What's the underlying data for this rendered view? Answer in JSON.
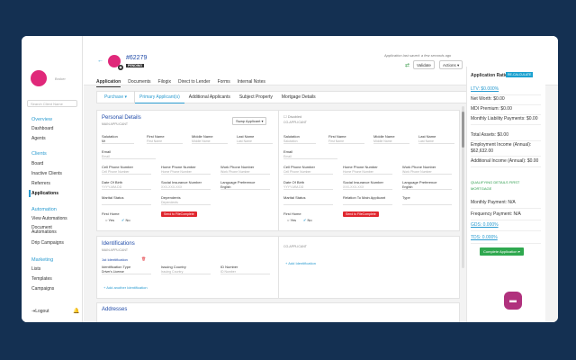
{
  "sidebar": {
    "broker": "Broker",
    "search_placeholder": "Search Client Name",
    "sections": [
      {
        "title": "Overview",
        "items": [
          "Dashboard",
          "Agents"
        ]
      },
      {
        "title": "Clients",
        "items": [
          "Board",
          "Inactive Clients",
          "Referrers",
          "Applications"
        ]
      },
      {
        "title": "Automation",
        "items": [
          "View Automations",
          "Document Automations",
          "Drip Campaigns"
        ]
      },
      {
        "title": "Marketing",
        "items": [
          "Lists",
          "Templates",
          "Campaigns"
        ]
      }
    ],
    "active_item": "Applications",
    "logout": "Logout"
  },
  "header": {
    "order_id": "#62279",
    "pending": "PENDING",
    "saved": "Application last saved: a few seconds ago",
    "validate": "Validate",
    "actions": "Actions ▾",
    "tabs": [
      "Application",
      "Documents",
      "Filogix",
      "Direct to Lender",
      "Forms",
      "Internal Notes"
    ]
  },
  "subbar": {
    "purpose": "Purchase ▾",
    "tabs": [
      "Primary Applicant(s)",
      "Additional Applicants",
      "Subject Property",
      "Mortgage Details"
    ]
  },
  "personal": {
    "title": "Personal Details",
    "main_applicant": "MAIN APPLICANT",
    "co_applicant": "CO-APPLICANT",
    "swap": "Swap Applicant ▾",
    "disabled": "Disabled",
    "salutation": "Salutation",
    "salutation_val": "Mr",
    "salutation_ph": "Salutation",
    "first_name": "First Name",
    "middle_name": "Middle Name",
    "last_name": "Last Name",
    "first_ph": "First Name",
    "middle_ph": "Middle Name",
    "last_ph": "Last Name",
    "email": "Email",
    "email_ph": "Email",
    "cell": "Cell Phone Number",
    "home": "Home Phone Number",
    "work": "Work Phone Number",
    "cell_ph": "Cell Phone Number",
    "home_ph": "Home Phone Number",
    "work_ph": "Work Phone Number",
    "dob": "Date Of Birth",
    "sin": "Social Insurance Number",
    "lang": "Language Preference",
    "dob_ph": "YYYY-MM-DD",
    "sin_ph": "XXX-XXX-XXX",
    "lang_val": "English",
    "marital": "Marital Status",
    "dependents": "Dependents",
    "dependents_ph": "Dependents",
    "relation": "Relation To Main Applicant",
    "type": "Type",
    "first_home": "First Home",
    "yes": "Yes",
    "no": "No",
    "send_fc": "Send to FileComplete"
  },
  "ident": {
    "title": "Identifications",
    "main_applicant": "MAIN APPLICANT",
    "co_applicant": "CO-APPLICANT",
    "first_id": "1st Identification",
    "id_type": "Identification Type",
    "id_type_val": "Driver's License",
    "issuing": "Issuing Country",
    "issuing_ph": "Issuing Country",
    "id_number": "ID Number",
    "id_number_ph": "ID Number",
    "add_another": "+ Add another Identification",
    "add_id": "+ Add Identification"
  },
  "addresses": {
    "title": "Addresses"
  },
  "ratios": {
    "title": "Application Ratios",
    "recalc": "RE-CALCULATE",
    "ltv": "LTV: $0.000%",
    "net_worth": "Net Worth:  $0.00",
    "mdi": "MDI Premium:  $0.00",
    "monthly_liab": "Monthly Liability Payments:  $0.00",
    "total_assets": "Total Assets:  $0.00",
    "emp_income": "Employment Income (Annual):  $62,632.00",
    "add_income": "Additional Income (Annual):  $0.00",
    "qual_header": "QUALIFYING DETAILS FIRST MORTGAGE",
    "monthly_pay": "Monthly Payment:  N/A",
    "freq_pay": "Frequency Payment:  N/A",
    "gds": "GDS: 0.000%",
    "tds": "TDS: 0.000%",
    "complete": "Complete Application ▾"
  },
  "colors": {
    "accent": "#2a9bd0",
    "brand": "#e0287a",
    "bg": "#143052"
  }
}
